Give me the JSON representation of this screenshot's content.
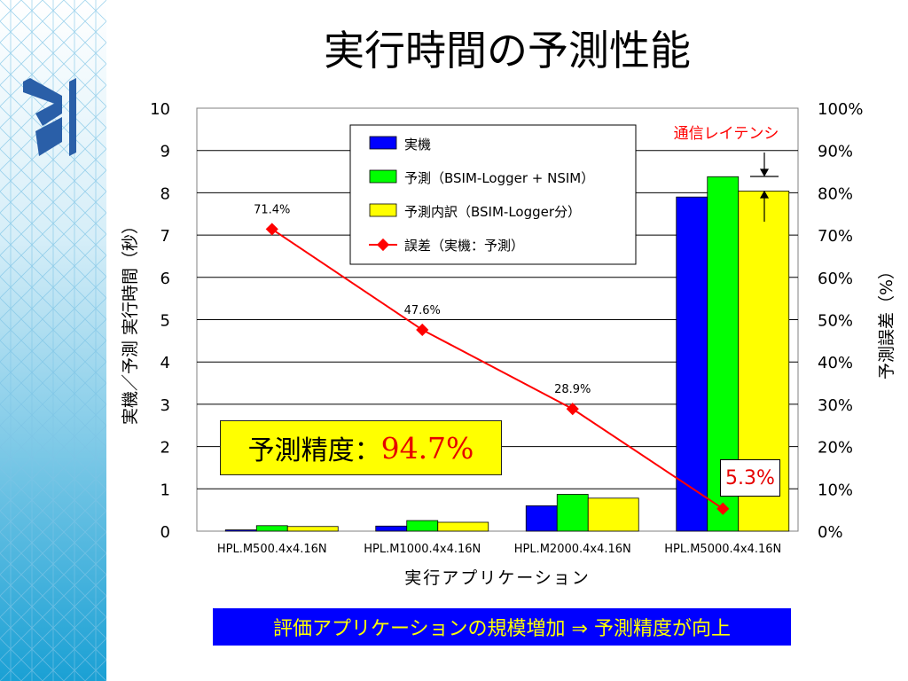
{
  "slide": {
    "title": "実行時間の予測性能",
    "accuracy_label": "予測精度：",
    "accuracy_value": "94.7%",
    "latency_label": "通信レイテンシ",
    "error_callout": "5.3%",
    "conclusion": "評価アプリケーションの規模増加 ⇒ 予測精度が向上",
    "colors": {
      "sidebar": "#1aa0d4",
      "actual": "#0000ff",
      "predicted": "#00ff00",
      "breakdown": "#ffff00",
      "error": "#ff0000"
    }
  },
  "chart_data": {
    "type": "bar",
    "categories": [
      "HPL.M500.4x4.16N",
      "HPL.M1000.4x4.16N",
      "HPL.M2000.4x4.16N",
      "HPL.M5000.4x4.16N"
    ],
    "series": [
      {
        "name": "実機",
        "type": "bar",
        "color": "#0000ff",
        "values": [
          0.03,
          0.12,
          0.6,
          7.9
        ]
      },
      {
        "name": "予測（BSIM-Logger + NSIM）",
        "type": "bar",
        "color": "#00ff00",
        "values": [
          0.13,
          0.25,
          0.87,
          8.38
        ]
      },
      {
        "name": "予測内訳（BSIM-Logger分）",
        "type": "bar",
        "color": "#ffff00",
        "values": [
          0.11,
          0.21,
          0.78,
          8.04
        ]
      },
      {
        "name": "誤差（実機：予測）",
        "type": "line",
        "axis": "right",
        "color": "#ff0000",
        "values": [
          71.4,
          47.6,
          28.9,
          5.3
        ]
      }
    ],
    "point_labels": [
      "71.4%",
      "47.6%",
      "28.9%",
      ""
    ],
    "xlabel": "実行アプリケーション",
    "ylabel": "実機／予測 実行時間（秒）",
    "y2label": "予測誤差（%）",
    "ylim": [
      0,
      10
    ],
    "y2lim": [
      0,
      100
    ],
    "yticks": [
      "0",
      "1",
      "2",
      "3",
      "4",
      "5",
      "6",
      "7",
      "8",
      "9",
      "10"
    ],
    "y2ticks": [
      "0%",
      "10%",
      "20%",
      "30%",
      "40%",
      "50%",
      "60%",
      "70%",
      "80%",
      "90%",
      "100%"
    ],
    "grid": true,
    "legend_position": "top-center"
  }
}
